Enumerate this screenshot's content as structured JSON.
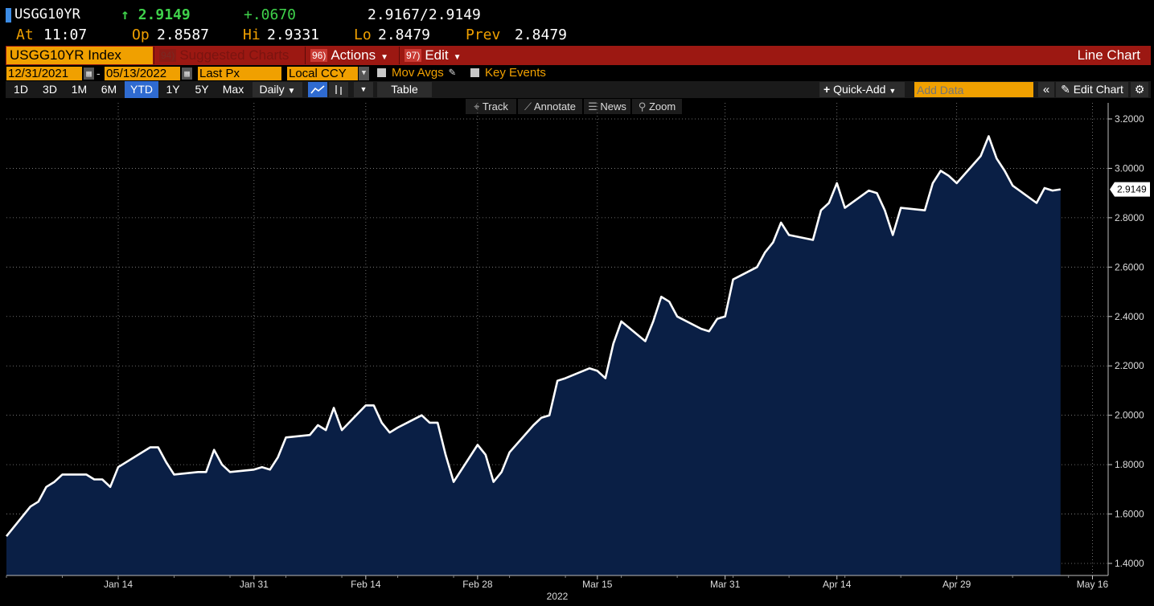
{
  "quote": {
    "ticker": "USGG10YR",
    "last": "2.9149",
    "change": "+.0670",
    "bid": "2.9167",
    "ask": "2.9149",
    "time_label": "At",
    "time": "11:07",
    "open_label": "Op",
    "open": "2.8587",
    "high_label": "Hi",
    "high": "2.9331",
    "low_label": "Lo",
    "low": "2.8479",
    "prev_label": "Prev",
    "prev": "2.8479"
  },
  "titlebar": {
    "security": "USGG10YR Index",
    "suggested_num": "94)",
    "suggested": "Suggested Charts",
    "actions_num": "96)",
    "actions": "Actions",
    "edit_num": "97)",
    "edit": "Edit",
    "chart_type": "Line Chart"
  },
  "settings": {
    "start_date": "12/31/2021",
    "dash": "-",
    "end_date": "05/13/2022",
    "field": "Last Px",
    "currency": "Local CCY",
    "mov_avgs": "Mov Avgs",
    "key_events": "Key Events"
  },
  "range": {
    "buttons": [
      "1D",
      "3D",
      "1M",
      "6M",
      "YTD",
      "1Y",
      "5Y",
      "Max"
    ],
    "active": "YTD",
    "frequency": "Daily",
    "table": "Table",
    "quick_add": "Quick-Add",
    "add_data_placeholder": "Add Data",
    "edit_chart": "Edit Chart"
  },
  "tools": {
    "track": "Track",
    "annotate": "Annotate",
    "news": "News",
    "zoom": "Zoom"
  },
  "colors": {
    "area": "#0a1f45",
    "line": "#ffffff",
    "accent": "#f0a000",
    "titlebar": "#9c1812",
    "up": "#3fd24b"
  },
  "chart_data": {
    "type": "area",
    "title": "",
    "xlabel": "2022",
    "ylabel": "",
    "ylim": [
      1.35,
      3.25
    ],
    "yticks": [
      "1.4000",
      "1.6000",
      "1.8000",
      "2.0000",
      "2.2000",
      "2.4000",
      "2.6000",
      "2.8000",
      "3.0000",
      "3.2000"
    ],
    "ytick_values": [
      1.4,
      1.6,
      1.8,
      2.0,
      2.2,
      2.4,
      2.6,
      2.8,
      3.0,
      3.2
    ],
    "xticks": [
      "Jan 14",
      "Jan 31",
      "Feb 14",
      "Feb 28",
      "Mar 15",
      "Mar 31",
      "Apr 14",
      "Apr 29",
      "May 16"
    ],
    "xtick_days": [
      14,
      31,
      45,
      59,
      74,
      90,
      104,
      119,
      136
    ],
    "last_label": "2.9149",
    "grid": true,
    "series": [
      {
        "x": [
          0,
          3,
          4,
          5,
          6,
          7,
          10,
          11,
          12,
          13,
          14,
          18,
          19,
          20,
          21,
          24,
          25,
          26,
          27,
          28,
          31,
          32,
          33,
          34,
          35,
          38,
          39,
          40,
          41,
          42,
          45,
          46,
          47,
          48,
          49,
          52,
          53,
          54,
          55,
          56,
          59,
          60,
          61,
          62,
          63,
          66,
          67,
          68,
          69,
          70,
          73,
          74,
          75,
          76,
          77,
          80,
          81,
          82,
          83,
          84,
          87,
          88,
          89,
          90,
          91,
          94,
          95,
          96,
          97,
          98,
          101,
          102,
          103,
          104,
          105,
          108,
          109,
          110,
          111,
          112,
          115,
          116,
          117,
          118,
          119,
          122,
          123,
          124,
          125,
          126,
          129,
          130,
          131,
          132
        ],
        "y": [
          1.51,
          1.63,
          1.65,
          1.71,
          1.73,
          1.76,
          1.76,
          1.74,
          1.74,
          1.71,
          1.79,
          1.87,
          1.87,
          1.81,
          1.76,
          1.77,
          1.77,
          1.86,
          1.8,
          1.77,
          1.78,
          1.79,
          1.78,
          1.83,
          1.91,
          1.92,
          1.96,
          1.94,
          2.03,
          1.94,
          2.04,
          2.04,
          1.97,
          1.93,
          1.95,
          2.0,
          1.97,
          1.97,
          1.84,
          1.73,
          1.88,
          1.84,
          1.73,
          1.77,
          1.85,
          1.96,
          1.99,
          2.0,
          2.14,
          2.15,
          2.19,
          2.18,
          2.15,
          2.29,
          2.38,
          2.3,
          2.38,
          2.48,
          2.46,
          2.4,
          2.35,
          2.34,
          2.39,
          2.4,
          2.55,
          2.6,
          2.66,
          2.7,
          2.78,
          2.73,
          2.71,
          2.83,
          2.86,
          2.94,
          2.84,
          2.91,
          2.9,
          2.83,
          2.73,
          2.84,
          2.83,
          2.94,
          2.99,
          2.97,
          2.94,
          3.05,
          3.13,
          3.04,
          2.99,
          2.93,
          2.86,
          2.92,
          2.91,
          2.9149
        ]
      }
    ]
  }
}
